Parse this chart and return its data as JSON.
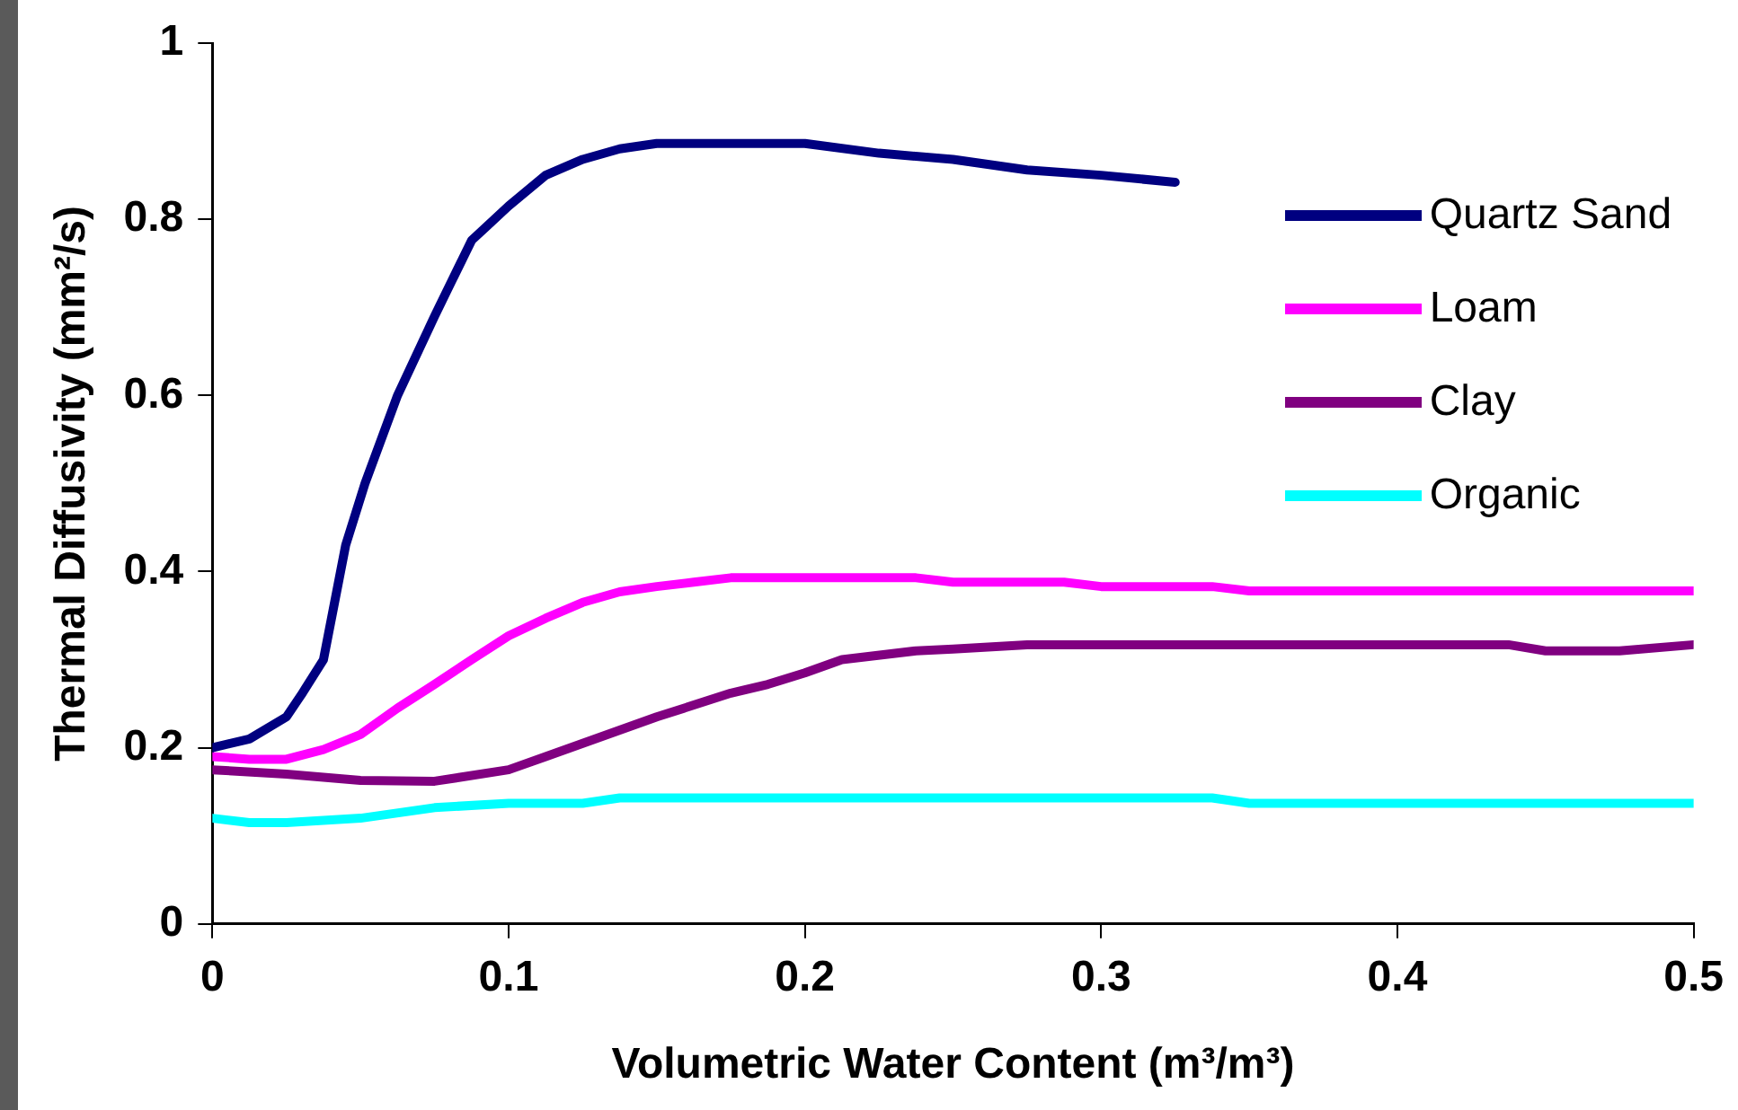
{
  "chart_data": {
    "type": "line",
    "xlabel": "Volumetric Water Content (m³/m³)",
    "ylabel": "Thermal Diffusivity (mm²/s)",
    "xlim": [
      0,
      0.5
    ],
    "xticks": [
      0,
      0.1,
      0.2,
      0.3,
      0.4,
      0.5
    ],
    "ylim": [
      0,
      1
    ],
    "yticks": [
      0,
      0.2,
      0.4,
      0.6,
      0.8,
      1
    ],
    "grid": false,
    "legend": "top right",
    "marker": "none",
    "line_style": "solid",
    "series": [
      {
        "name": "Quartz Sand",
        "color": "#000080",
        "x": [
          0,
          0.0125,
          0.025,
          0.03,
          0.0375,
          0.045,
          0.0515,
          0.0625,
          0.075,
          0.0875,
          0.1,
          0.1125,
          0.125,
          0.1375,
          0.15,
          0.2,
          0.225,
          0.25,
          0.275,
          0.3,
          0.325
        ],
        "values": [
          0.2,
          0.21,
          0.235,
          0.26,
          0.3,
          0.43,
          0.5,
          0.6,
          0.69,
          0.776,
          0.815,
          0.85,
          0.868,
          0.88,
          0.886,
          0.886,
          0.875,
          0.868,
          0.856,
          0.85,
          0.842
        ]
      },
      {
        "name": "Loam",
        "color": "#ff00ff",
        "x": [
          0,
          0.0125,
          0.025,
          0.0375,
          0.05,
          0.0625,
          0.075,
          0.0875,
          0.1,
          0.1125,
          0.125,
          0.1375,
          0.15,
          0.1625,
          0.175,
          0.2,
          0.2375,
          0.25,
          0.2875,
          0.3,
          0.3375,
          0.35,
          0.5
        ],
        "values": [
          0.19,
          0.187,
          0.187,
          0.198,
          0.215,
          0.245,
          0.272,
          0.3,
          0.327,
          0.347,
          0.365,
          0.377,
          0.383,
          0.388,
          0.393,
          0.393,
          0.393,
          0.388,
          0.388,
          0.383,
          0.383,
          0.378,
          0.378
        ]
      },
      {
        "name": "Clay",
        "color": "#800080",
        "x": [
          0,
          0.025,
          0.05,
          0.075,
          0.1,
          0.1125,
          0.125,
          0.15,
          0.175,
          0.1875,
          0.2,
          0.2125,
          0.2375,
          0.25,
          0.275,
          0.3,
          0.4375,
          0.45,
          0.475,
          0.5
        ],
        "values": [
          0.175,
          0.17,
          0.163,
          0.162,
          0.175,
          0.19,
          0.205,
          0.235,
          0.262,
          0.272,
          0.285,
          0.3,
          0.31,
          0.312,
          0.317,
          0.317,
          0.317,
          0.31,
          0.31,
          0.317
        ]
      },
      {
        "name": "Organic",
        "color": "#00ffff",
        "x": [
          0,
          0.0125,
          0.025,
          0.05,
          0.075,
          0.1,
          0.125,
          0.1375,
          0.3375,
          0.35,
          0.5
        ],
        "values": [
          0.12,
          0.115,
          0.115,
          0.12,
          0.132,
          0.137,
          0.137,
          0.143,
          0.143,
          0.137,
          0.137
        ]
      }
    ]
  }
}
